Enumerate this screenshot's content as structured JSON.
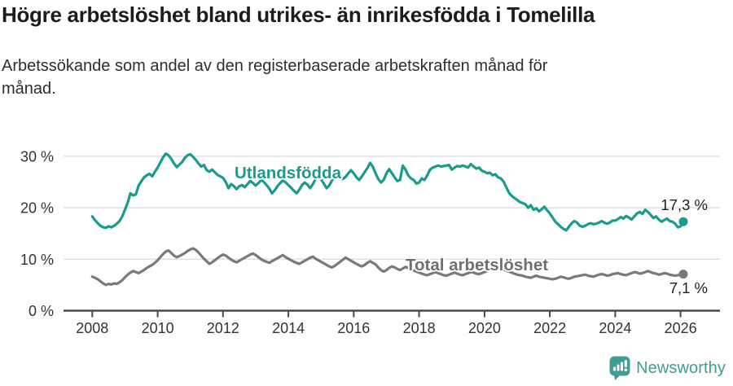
{
  "header": {
    "title": "Högre arbetslöshet bland utrikes- än inrikesfödda i Tomelilla",
    "subtitle": "Arbetssökande som andel av den registerbaserade arbetskraften månad för månad.",
    "subtitle_lines": [
      "Arbetssökande som andel av den registerbaserade arbetskraften månad för",
      "månad."
    ]
  },
  "chart_data": {
    "type": "line",
    "x_unit": "month",
    "x_start": "2008-01",
    "x_end": "2026-02",
    "x_tick_labels": [
      "2008",
      "2010",
      "2012",
      "2014",
      "2016",
      "2018",
      "2020",
      "2022",
      "2024",
      "2026"
    ],
    "y_ticks": [
      0,
      10,
      20,
      30
    ],
    "y_tick_labels": [
      "0 %",
      "10 %",
      "20 %",
      "30 %"
    ],
    "ylim": [
      0,
      32
    ],
    "grid": "horizontal",
    "legend": "inline-labels",
    "series": [
      {
        "name": "Utlandsfödda",
        "color": "#1a9c8c",
        "end_value_label": "17,3 %",
        "end_value": 17.3,
        "values": [
          18.3,
          17.6,
          17.0,
          16.5,
          16.2,
          16.1,
          16.4,
          16.2,
          16.5,
          16.9,
          17.4,
          18.3,
          19.6,
          21.0,
          22.8,
          22.4,
          22.6,
          24.3,
          25.1,
          25.9,
          26.3,
          26.6,
          26.1,
          27.0,
          27.8,
          28.8,
          29.8,
          30.5,
          30.2,
          29.5,
          28.6,
          27.9,
          28.4,
          28.9,
          29.7,
          30.2,
          30.4,
          29.9,
          29.3,
          28.6,
          28.0,
          28.3,
          27.3,
          27.0,
          27.4,
          26.9,
          26.4,
          26.1,
          25.8,
          25.0,
          23.8,
          24.6,
          24.2,
          23.6,
          24.2,
          24.4,
          24.0,
          24.6,
          25.2,
          24.8,
          24.3,
          24.8,
          25.4,
          25.0,
          24.4,
          23.7,
          22.8,
          23.4,
          24.2,
          24.8,
          25.3,
          24.9,
          24.4,
          23.9,
          23.3,
          22.8,
          23.5,
          24.4,
          24.9,
          24.5,
          23.8,
          24.6,
          25.6,
          26.1,
          25.5,
          24.7,
          23.8,
          24.3,
          25.3,
          26.2,
          26.9,
          26.4,
          25.6,
          26.0,
          26.7,
          27.3,
          26.7,
          25.9,
          25.4,
          26.1,
          26.9,
          27.7,
          28.7,
          28.0,
          26.7,
          25.6,
          24.9,
          25.4,
          26.7,
          27.5,
          26.7,
          25.9,
          25.2,
          25.4,
          28.2,
          27.4,
          26.3,
          25.7,
          25.4,
          24.7,
          24.9,
          25.7,
          25.4,
          26.3,
          27.4,
          27.8,
          28.0,
          28.2,
          28.0,
          28.1,
          28.2,
          28.3,
          27.4,
          27.8,
          28.1,
          28.0,
          28.2,
          28.0,
          27.8,
          28.5,
          28.0,
          27.6,
          27.8,
          27.2,
          27.0,
          26.7,
          26.8,
          26.3,
          26.5,
          25.9,
          25.7,
          25.1,
          24.0,
          22.9,
          22.3,
          21.9,
          21.5,
          21.1,
          20.9,
          20.7,
          20.0,
          20.5,
          19.6,
          19.9,
          19.3,
          19.7,
          20.2,
          19.5,
          18.9,
          18.1,
          17.3,
          16.8,
          16.3,
          15.9,
          15.6,
          16.3,
          17.0,
          17.4,
          17.1,
          16.5,
          16.3,
          16.5,
          16.8,
          17.0,
          16.8,
          16.9,
          17.1,
          17.4,
          17.1,
          16.9,
          17.1,
          17.5,
          17.5,
          17.8,
          18.2,
          17.9,
          18.4,
          18.1,
          17.7,
          18.3,
          18.9,
          19.2,
          18.8,
          19.6,
          19.2,
          18.6,
          18.0,
          18.3,
          17.7,
          17.3,
          17.6,
          17.9,
          17.4,
          17.3,
          16.9,
          16.2,
          16.4,
          17.3
        ]
      },
      {
        "name": "Total arbetslöshet",
        "color": "#7a7a7a",
        "label_color": "#6f6f74",
        "end_value_label": "7,1 %",
        "end_value": 7.1,
        "values": [
          6.6,
          6.4,
          6.1,
          5.7,
          5.3,
          5.0,
          5.2,
          5.1,
          5.3,
          5.2,
          5.5,
          5.9,
          6.5,
          7.0,
          7.4,
          7.7,
          7.5,
          7.3,
          7.6,
          7.9,
          8.3,
          8.6,
          8.9,
          9.3,
          9.8,
          10.4,
          11.0,
          11.5,
          11.7,
          11.2,
          10.7,
          10.4,
          10.6,
          10.9,
          11.2,
          11.6,
          11.9,
          12.1,
          11.8,
          11.3,
          10.7,
          10.1,
          9.6,
          9.1,
          9.4,
          9.8,
          10.2,
          10.6,
          10.9,
          10.7,
          10.3,
          9.9,
          9.6,
          9.4,
          9.7,
          10.0,
          10.3,
          10.6,
          10.9,
          11.1,
          10.8,
          10.4,
          10.0,
          9.7,
          9.5,
          9.3,
          9.6,
          9.9,
          10.2,
          10.5,
          10.8,
          10.4,
          10.1,
          9.8,
          9.5,
          9.3,
          9.1,
          9.4,
          9.7,
          10.0,
          10.3,
          10.5,
          10.1,
          9.8,
          9.5,
          9.2,
          8.9,
          8.6,
          8.4,
          8.7,
          9.1,
          9.5,
          9.9,
          10.3,
          10.0,
          9.7,
          9.4,
          9.1,
          8.8,
          8.6,
          8.9,
          9.3,
          9.6,
          9.3,
          9.0,
          8.4,
          7.9,
          7.6,
          7.9,
          8.3,
          8.6,
          8.4,
          8.1,
          7.9,
          8.2,
          8.5,
          8.3,
          8.0,
          7.8,
          7.6,
          7.4,
          7.2,
          7.0,
          6.9,
          7.1,
          7.3,
          7.5,
          7.3,
          7.1,
          6.9,
          6.8,
          7.0,
          7.2,
          7.4,
          7.2,
          7.0,
          6.9,
          7.1,
          7.3,
          7.5,
          7.4,
          7.2,
          7.1,
          7.3,
          7.5,
          7.7,
          8.0,
          8.3,
          8.5,
          8.4,
          8.2,
          8.0,
          7.8,
          7.6,
          7.4,
          7.2,
          7.0,
          6.9,
          6.8,
          6.6,
          6.5,
          6.4,
          6.6,
          6.8,
          6.6,
          6.5,
          6.4,
          6.3,
          6.2,
          6.1,
          6.2,
          6.4,
          6.6,
          6.5,
          6.3,
          6.2,
          6.4,
          6.6,
          6.7,
          6.8,
          6.9,
          7.0,
          6.8,
          6.7,
          6.6,
          6.8,
          7.0,
          7.1,
          7.0,
          6.8,
          6.9,
          7.1,
          7.2,
          7.3,
          7.1,
          7.0,
          6.9,
          7.1,
          7.3,
          7.5,
          7.4,
          7.2,
          7.3,
          7.5,
          7.7,
          7.5,
          7.3,
          7.2,
          7.0,
          7.1,
          7.3,
          7.2,
          7.0,
          6.9,
          6.8,
          6.9,
          7.0,
          7.1
        ]
      }
    ]
  },
  "footer": {
    "brand": "Newsworthy",
    "logo_color": "#3f9c96"
  }
}
